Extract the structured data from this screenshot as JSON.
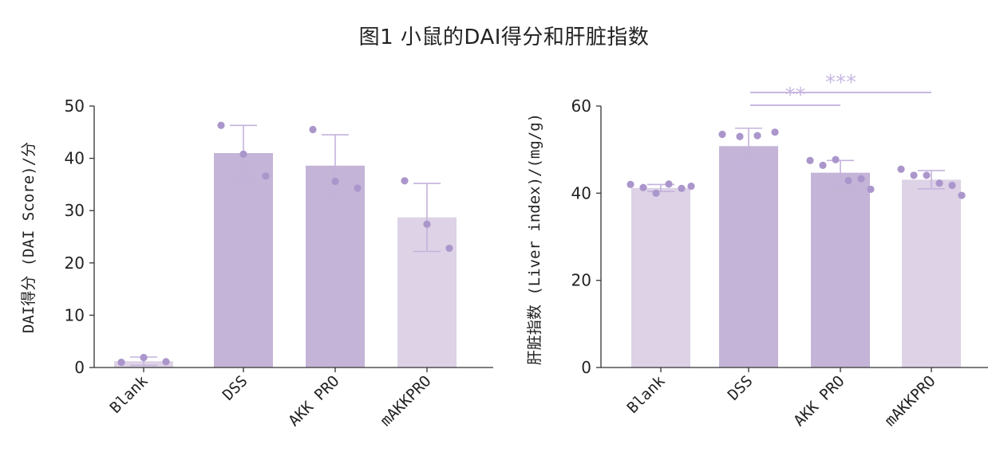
{
  "figure": {
    "title": "图1 小鼠的DAI得分和肝脏指数"
  },
  "colors": {
    "bar_dark": "#c4b4d7",
    "bar_light": "#ddd2e6",
    "error": "#c4b2dc",
    "dot": "#ab96cc",
    "sig": "#c7b8e2",
    "axis": "#333333"
  },
  "chart_data": [
    {
      "type": "bar",
      "title": "",
      "xlabel": "",
      "ylabel": "DAI得分 (DAI Score)/分",
      "ylim": [
        0,
        50
      ],
      "yticks": [
        0,
        10,
        20,
        30,
        40,
        50
      ],
      "grid": false,
      "categories": [
        "Blank",
        "DSS",
        "AKK PRO",
        "mAKKPRO"
      ],
      "values": [
        1.2,
        41.0,
        38.6,
        28.7
      ],
      "errors": [
        0.8,
        5.3,
        5.9,
        6.5
      ],
      "points": [
        [
          1.0,
          1.9,
          1.1
        ],
        [
          46.3,
          40.8,
          36.6
        ],
        [
          45.5,
          35.6,
          34.3
        ],
        [
          35.7,
          27.4,
          22.8
        ]
      ],
      "bar_colors": [
        "#ddd2e6",
        "#c4b4d7",
        "#c4b4d7",
        "#ddd2e6"
      ],
      "significance": []
    },
    {
      "type": "bar",
      "title": "",
      "xlabel": "",
      "ylabel": "肝脏指数 (Liver index)/(mg/g)",
      "ylim": [
        0,
        60
      ],
      "yticks": [
        0,
        20,
        40,
        60
      ],
      "grid": false,
      "categories": [
        "Blank",
        "DSS",
        "AKK PRO",
        "mAKKPRO"
      ],
      "values": [
        41.2,
        50.8,
        44.7,
        43.1
      ],
      "errors": [
        0.8,
        4.1,
        2.8,
        2.1
      ],
      "points": [
        [
          42.0,
          41.3,
          40.0,
          42.1,
          41.1,
          41.6
        ],
        [
          53.5,
          53.0,
          53.2,
          54.0
        ],
        [
          47.5,
          46.4,
          47.7,
          42.9,
          43.3,
          40.9
        ],
        [
          45.5,
          44.1,
          44.1,
          42.3,
          41.8,
          39.5
        ]
      ],
      "bar_colors": [
        "#ddd2e6",
        "#c4b4d7",
        "#c4b4d7",
        "#ddd2e6"
      ],
      "significance": [
        {
          "label": "**",
          "from": "DSS",
          "to": "AKK PRO"
        },
        {
          "label": "***",
          "from": "DSS",
          "to": "mAKKPRO"
        }
      ]
    }
  ]
}
